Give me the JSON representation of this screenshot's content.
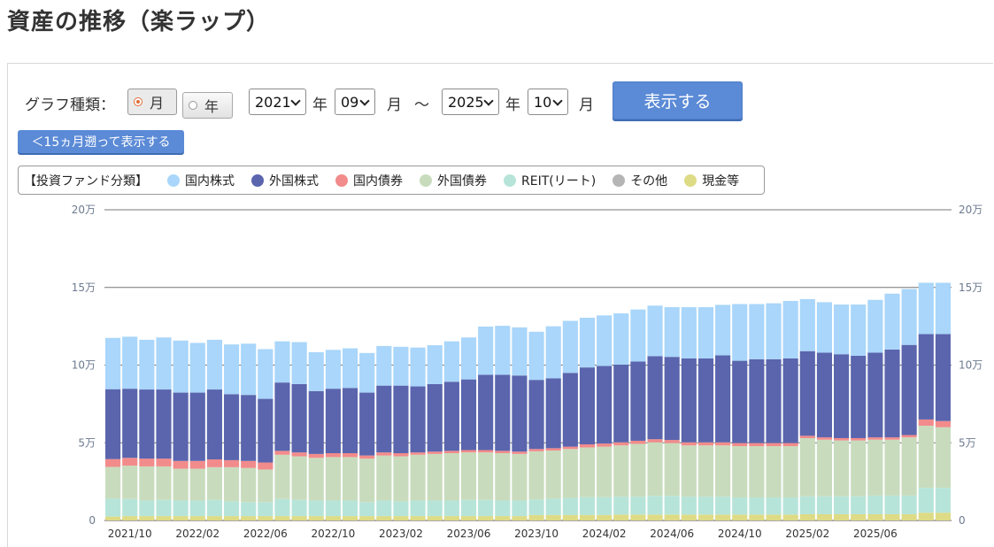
{
  "page": {
    "title": "資産の推移（楽ラップ）"
  },
  "controls": {
    "graph_type_label": "グラフ種類：",
    "monthly_label": "月",
    "yearly_label": "年",
    "selected": "月",
    "from_year": "2021",
    "from_month": "09",
    "to_year": "2025",
    "to_month": "10",
    "year_unit": "年",
    "month_unit": "月",
    "range_sep": "〜",
    "show_button": "表示する",
    "back_button": "＜15ヵ月遡って表示する"
  },
  "legend": {
    "title": "【投資ファンド分類】",
    "items": [
      {
        "label": "国内株式",
        "color": "#a9d6fa"
      },
      {
        "label": "外国株式",
        "color": "#5a65ad"
      },
      {
        "label": "国内債券",
        "color": "#f28b8b"
      },
      {
        "label": "外国債券",
        "color": "#c8dcbd"
      },
      {
        "label": "REIT(リート)",
        "color": "#b7e4d9"
      },
      {
        "label": "その他",
        "color": "#b5b5b5"
      },
      {
        "label": "現金等",
        "color": "#dedb86"
      }
    ]
  },
  "chart_data": {
    "type": "bar",
    "stacked": true,
    "y_tick_labels": [
      "0",
      "5万",
      "10万",
      "15万",
      "20万"
    ],
    "ylim": [
      0,
      200000
    ],
    "grid": true,
    "x_tick_labels": [
      "2021/10",
      "2022/02",
      "2022/06",
      "2022/10",
      "2023/02",
      "2023/06",
      "2023/10",
      "2024/02",
      "2024/06",
      "2024/10",
      "2025/02",
      "2025/06"
    ],
    "categories": [
      "2021/09",
      "2021/10",
      "2021/11",
      "2021/12",
      "2022/01",
      "2022/02",
      "2022/03",
      "2022/04",
      "2022/05",
      "2022/06",
      "2022/07",
      "2022/08",
      "2022/09",
      "2022/10",
      "2022/11",
      "2022/12",
      "2023/01",
      "2023/02",
      "2023/03",
      "2023/04",
      "2023/05",
      "2023/06",
      "2023/07",
      "2023/08",
      "2023/09",
      "2023/10",
      "2023/11",
      "2023/12",
      "2024/01",
      "2024/02",
      "2024/03",
      "2024/04",
      "2024/05",
      "2024/06",
      "2024/07",
      "2024/08",
      "2024/09",
      "2024/10",
      "2024/11",
      "2024/12",
      "2025/01",
      "2025/02",
      "2025/03",
      "2025/04",
      "2025/05",
      "2025/06",
      "2025/07",
      "2025/08",
      "2025/09",
      "2025/10"
    ],
    "series": [
      {
        "name": "現金等",
        "color": "#dedb86",
        "values": [
          2500,
          2800,
          2800,
          2800,
          2800,
          2800,
          2800,
          2800,
          2800,
          2800,
          2800,
          2800,
          2800,
          2800,
          2800,
          2800,
          2800,
          2800,
          2800,
          2800,
          2800,
          2800,
          2800,
          2800,
          2800,
          3500,
          3500,
          3500,
          3500,
          3500,
          3800,
          3800,
          3800,
          3800,
          3800,
          3800,
          3800,
          3800,
          3800,
          3800,
          3800,
          4000,
          4000,
          4000,
          4000,
          4000,
          4000,
          4000,
          5000,
          5000
        ]
      },
      {
        "name": "REIT(リート)",
        "color": "#b7e4d9",
        "values": [
          11500,
          11000,
          10000,
          10500,
          10000,
          10000,
          10500,
          9500,
          9000,
          9000,
          11000,
          10500,
          10000,
          10000,
          10000,
          9000,
          10000,
          9500,
          10000,
          10000,
          10000,
          10500,
          10500,
          10000,
          10000,
          10000,
          10500,
          11000,
          11500,
          11500,
          11500,
          11500,
          12000,
          12000,
          11500,
          11500,
          11500,
          11000,
          11000,
          11000,
          11000,
          11500,
          11500,
          11500,
          11500,
          12000,
          12000,
          12000,
          16000,
          16000
        ]
      },
      {
        "name": "外国債券",
        "color": "#c8dcbd",
        "values": [
          20500,
          21500,
          22000,
          21500,
          20500,
          20500,
          21000,
          22000,
          22000,
          21000,
          28500,
          28000,
          27500,
          28000,
          28000,
          28000,
          29000,
          29000,
          29500,
          30000,
          30500,
          30500,
          30500,
          30500,
          30000,
          31000,
          31000,
          31500,
          32000,
          32500,
          33000,
          34000,
          34500,
          34000,
          33000,
          33000,
          33000,
          33000,
          33000,
          33000,
          33000,
          37500,
          36500,
          36000,
          36000,
          36000,
          36000,
          37500,
          40000,
          39000
        ]
      },
      {
        "name": "国内債券",
        "color": "#f28b8b",
        "values": [
          5000,
          5000,
          5000,
          5000,
          5000,
          5000,
          5000,
          4500,
          4500,
          4500,
          2500,
          2500,
          2500,
          2500,
          2500,
          2000,
          2000,
          2000,
          1500,
          1500,
          1500,
          1500,
          1500,
          1500,
          1500,
          1500,
          1500,
          1500,
          2000,
          2000,
          2000,
          2000,
          2000,
          2000,
          2000,
          2000,
          2000,
          2000,
          2000,
          2000,
          2000,
          1500,
          1500,
          1500,
          1500,
          1500,
          1500,
          1500,
          4000,
          4000
        ]
      },
      {
        "name": "外国株式",
        "color": "#5a65ad",
        "values": [
          45000,
          44500,
          44500,
          44500,
          44000,
          44000,
          45000,
          42500,
          42500,
          41000,
          44000,
          44000,
          40500,
          41500,
          42000,
          40500,
          43000,
          43500,
          42500,
          43500,
          44500,
          45500,
          48500,
          49000,
          49000,
          44500,
          45000,
          47500,
          49500,
          50000,
          50000,
          51000,
          53500,
          53500,
          54000,
          54000,
          56000,
          53000,
          54000,
          54000,
          54500,
          54500,
          54500,
          54000,
          53000,
          54500,
          56500,
          58000,
          55000,
          56000
        ]
      },
      {
        "name": "国内株式",
        "color": "#a9d6fa",
        "values": [
          33000,
          33500,
          32000,
          33500,
          33500,
          32000,
          32000,
          32000,
          33000,
          32000,
          26500,
          27000,
          25000,
          25000,
          25500,
          25500,
          25500,
          25000,
          25000,
          25000,
          26000,
          27000,
          31000,
          31500,
          31000,
          31000,
          33500,
          33500,
          32000,
          32500,
          33000,
          33500,
          32500,
          32000,
          33000,
          33000,
          32500,
          36500,
          35500,
          36000,
          37000,
          33500,
          32500,
          32000,
          33000,
          34000,
          36000,
          36000,
          33000,
          33000
        ]
      }
    ]
  }
}
